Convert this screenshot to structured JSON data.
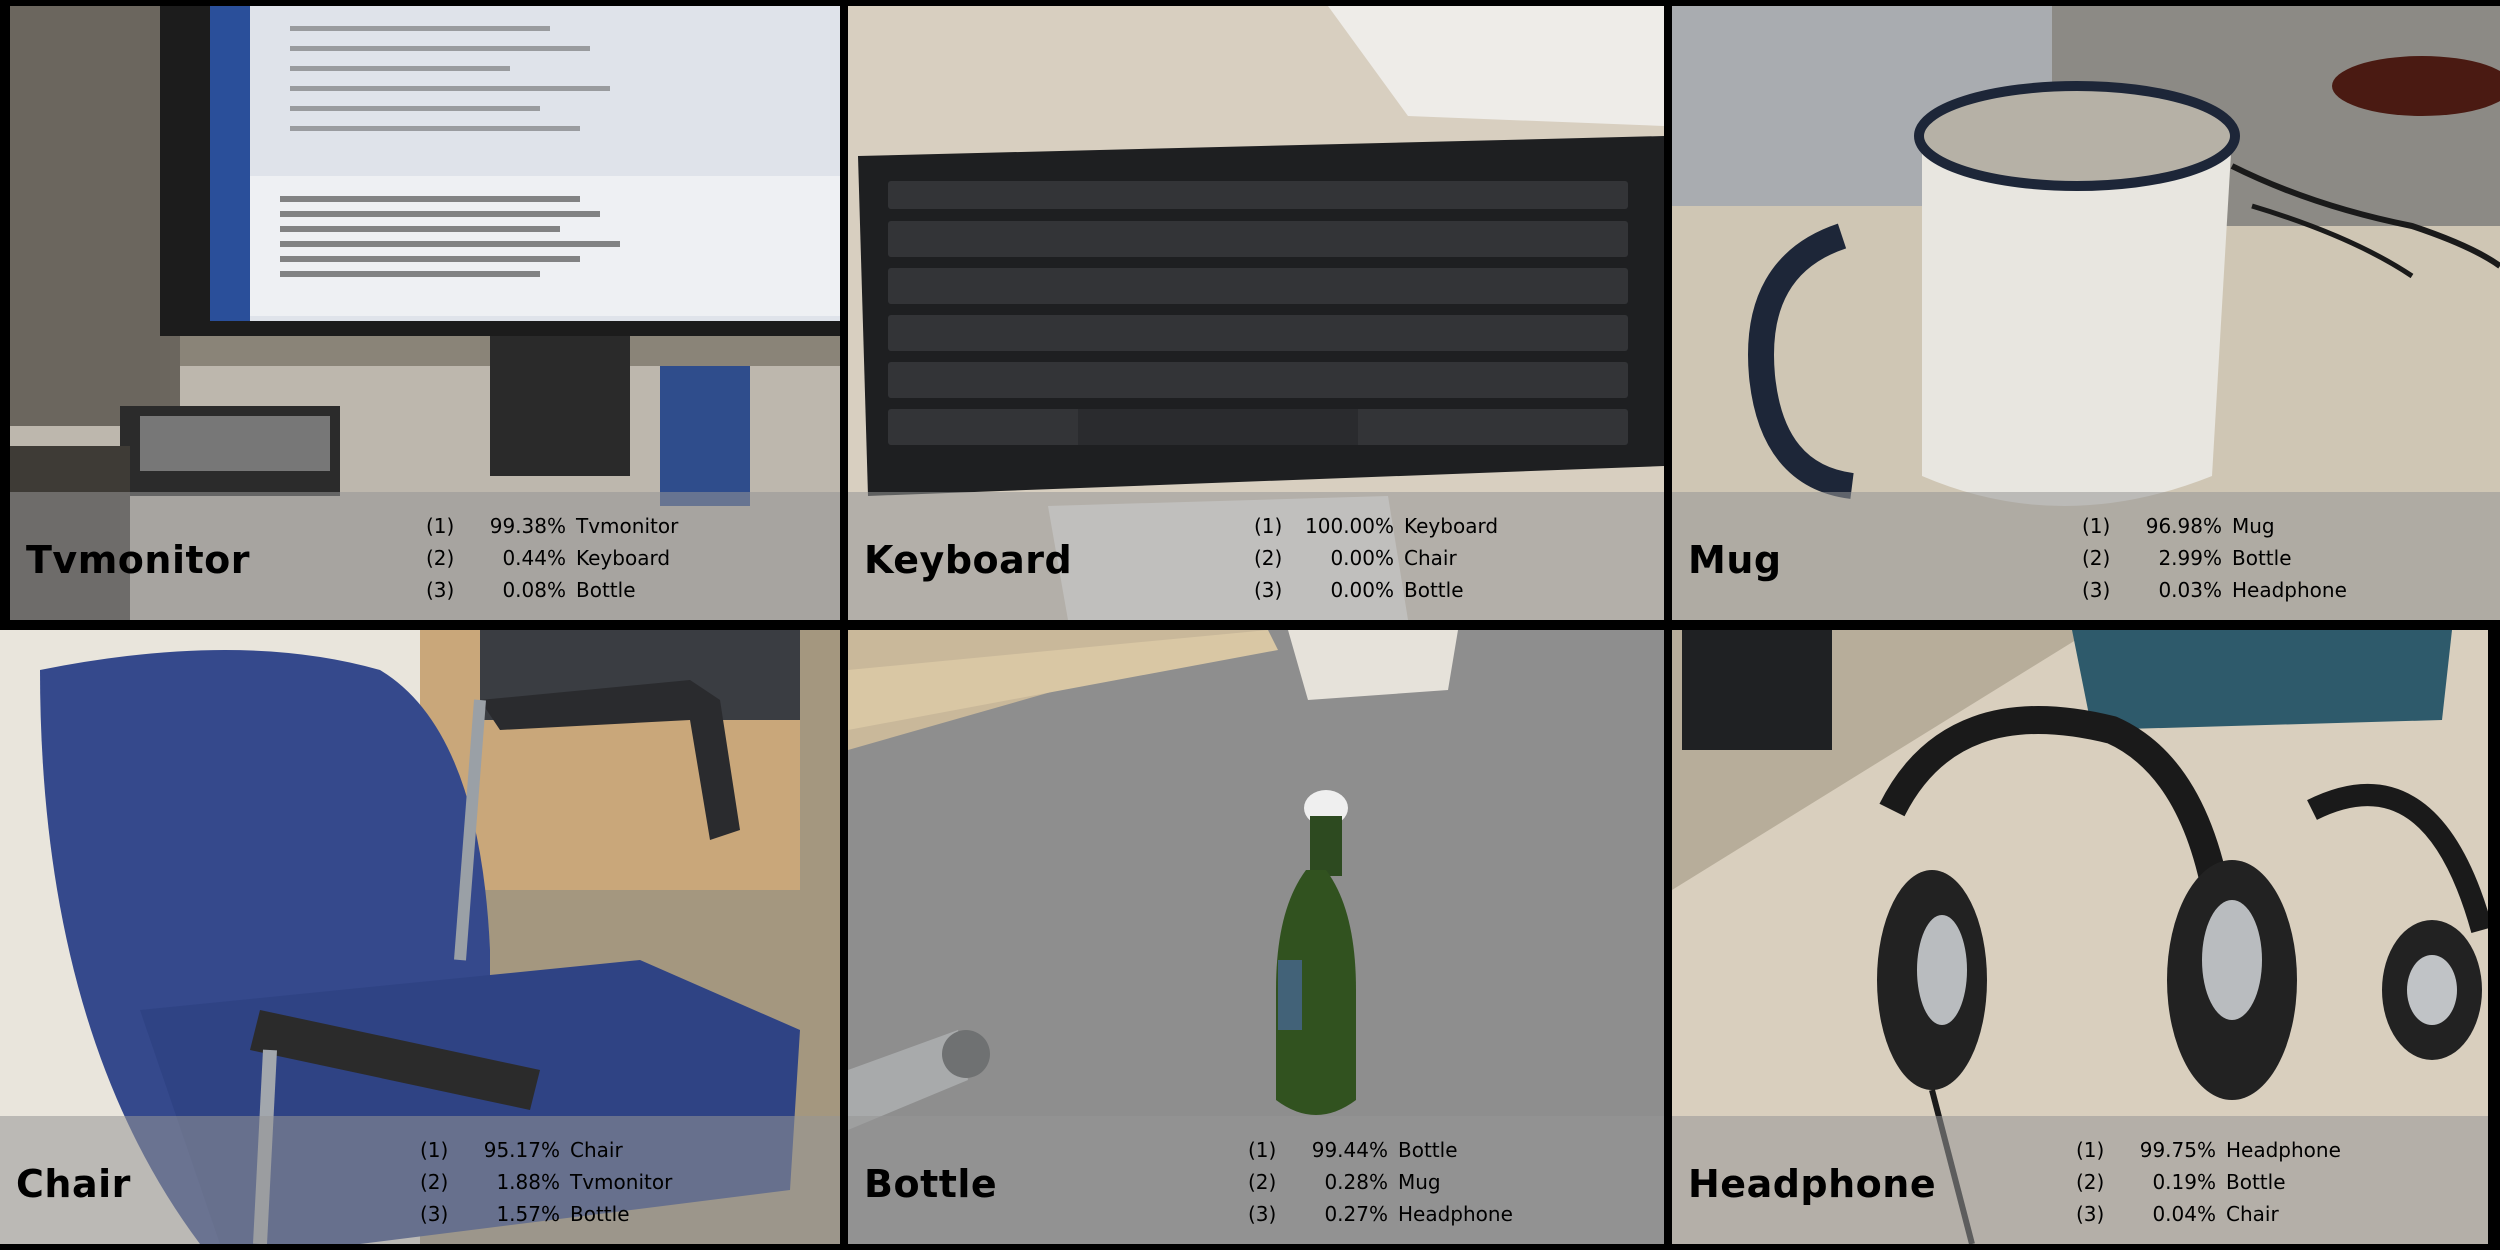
{
  "tiles": [
    {
      "label": "Tvmonitor",
      "predictions": [
        {
          "rank": "(1)",
          "percent": "99.38%",
          "cls": "Tvmonitor"
        },
        {
          "rank": "(2)",
          "percent": "0.44%",
          "cls": "Keyboard"
        },
        {
          "rank": "(3)",
          "percent": "0.08%",
          "cls": "Bottle"
        }
      ]
    },
    {
      "label": "Keyboard",
      "predictions": [
        {
          "rank": "(1)",
          "percent": "100.00%",
          "cls": "Keyboard"
        },
        {
          "rank": "(2)",
          "percent": "0.00%",
          "cls": "Chair"
        },
        {
          "rank": "(3)",
          "percent": "0.00%",
          "cls": "Bottle"
        }
      ]
    },
    {
      "label": "Mug",
      "predictions": [
        {
          "rank": "(1)",
          "percent": "96.98%",
          "cls": "Mug"
        },
        {
          "rank": "(2)",
          "percent": "2.99%",
          "cls": "Bottle"
        },
        {
          "rank": "(3)",
          "percent": "0.03%",
          "cls": "Headphone"
        }
      ]
    },
    {
      "label": "Chair",
      "predictions": [
        {
          "rank": "(1)",
          "percent": "95.17%",
          "cls": "Chair"
        },
        {
          "rank": "(2)",
          "percent": "1.88%",
          "cls": "Tvmonitor"
        },
        {
          "rank": "(3)",
          "percent": "1.57%",
          "cls": "Bottle"
        }
      ]
    },
    {
      "label": "Bottle",
      "predictions": [
        {
          "rank": "(1)",
          "percent": "99.44%",
          "cls": "Bottle"
        },
        {
          "rank": "(2)",
          "percent": "0.28%",
          "cls": "Mug"
        },
        {
          "rank": "(3)",
          "percent": "0.27%",
          "cls": "Headphone"
        }
      ]
    },
    {
      "label": "Headphone",
      "predictions": [
        {
          "rank": "(1)",
          "percent": "99.75%",
          "cls": "Headphone"
        },
        {
          "rank": "(2)",
          "percent": "0.19%",
          "cls": "Bottle"
        },
        {
          "rank": "(3)",
          "percent": "0.04%",
          "cls": "Chair"
        }
      ]
    }
  ]
}
